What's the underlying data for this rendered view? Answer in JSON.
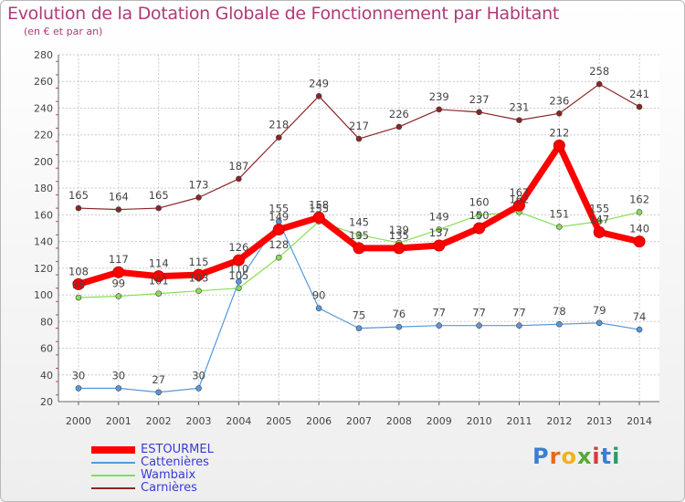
{
  "chart_data": {
    "type": "line",
    "title": "Evolution de la Dotation Globale de Fonctionnement par Habitant",
    "subtitle": "(en € et par an)",
    "xlabel": "",
    "ylabel": "",
    "ylim": [
      20,
      280
    ],
    "yticks": [
      20,
      40,
      60,
      80,
      100,
      120,
      140,
      160,
      180,
      200,
      220,
      240,
      260,
      280
    ],
    "grid": true,
    "categories": [
      "2000",
      "2001",
      "2002",
      "2003",
      "2004",
      "2005",
      "2006",
      "2007",
      "2008",
      "2009",
      "2010",
      "2011",
      "2012",
      "2013",
      "2014"
    ],
    "series": [
      {
        "name": "Carnières",
        "color": "#8b2525",
        "bold": false,
        "values": [
          165,
          164,
          165,
          173,
          187,
          218,
          249,
          217,
          226,
          239,
          237,
          231,
          236,
          258,
          241
        ]
      },
      {
        "name": "Wambaix",
        "color": "#88dd55",
        "bold": false,
        "values": [
          98,
          99,
          101,
          103,
          105,
          128,
          155,
          145,
          139,
          149,
          160,
          162,
          151,
          155,
          162
        ]
      },
      {
        "name": "Cattenières",
        "color": "#5599dd",
        "bold": false,
        "values": [
          30,
          30,
          27,
          30,
          110,
          155,
          90,
          75,
          76,
          77,
          77,
          77,
          78,
          79,
          74
        ]
      },
      {
        "name": "ESTOURMEL",
        "color": "#ff0000",
        "bold": true,
        "values": [
          108,
          117,
          114,
          115,
          126,
          149,
          158,
          135,
          135,
          137,
          150,
          167,
          212,
          147,
          140
        ]
      }
    ],
    "legend": [
      "ESTOURMEL",
      "Cattenières",
      "Wambaix",
      "Carnières"
    ],
    "legend_position": "bottom-left"
  },
  "logo": {
    "letters": [
      "P",
      "r",
      "o",
      "x",
      "i",
      "t",
      "i"
    ],
    "colors": [
      "#3a7fd5",
      "#e86a1a",
      "#f2b21a",
      "#55aa33",
      "#d83a3a",
      "#3a7fd5",
      "#2e9a6a"
    ]
  }
}
